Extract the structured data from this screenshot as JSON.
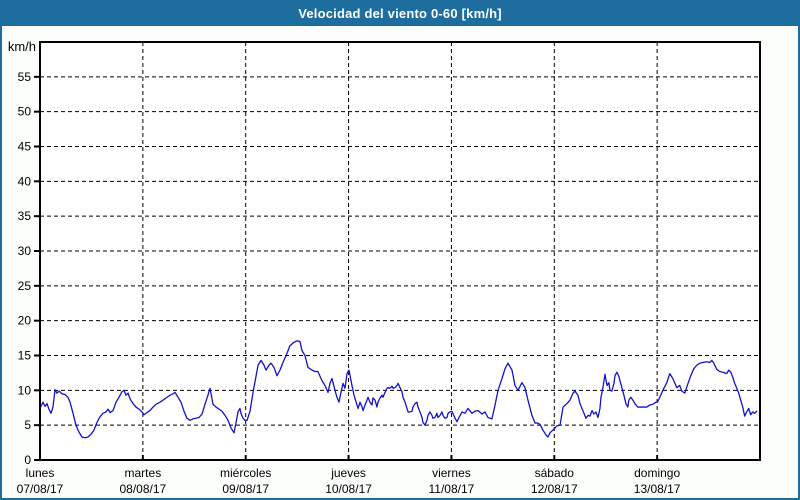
{
  "window": {
    "title": "Velocidad del viento 0-60 [km/h]"
  },
  "colors": {
    "title_bar_bg": "#1d6d9e",
    "title_text": "#ffffff",
    "frame_border": "#1d6d9e",
    "page_bg": "#fcfefc",
    "plot_bg": "#fefffe",
    "axis": "#000000",
    "grid": "#000000",
    "tick_label": "#000000",
    "line": "#1313cc"
  },
  "chart_data": {
    "type": "line",
    "title": "Velocidad del viento 0-60 [km/h]",
    "ylabel": "km/h",
    "xlabel": "",
    "ylim": [
      0,
      60
    ],
    "yticks": [
      0,
      5,
      10,
      15,
      20,
      25,
      30,
      35,
      40,
      45,
      50,
      55
    ],
    "grid": "dashed",
    "legend_position": "none",
    "x_axis": {
      "days": [
        {
          "name": "lunes",
          "date": "07/08/17"
        },
        {
          "name": "martes",
          "date": "08/08/17"
        },
        {
          "name": "miércoles",
          "date": "09/08/17"
        },
        {
          "name": "jueves",
          "date": "10/08/17"
        },
        {
          "name": "viernes",
          "date": "11/08/17"
        },
        {
          "name": "sábado",
          "date": "12/08/17"
        },
        {
          "name": "domingo",
          "date": "13/08/17"
        }
      ]
    },
    "series": [
      {
        "name": "velocidad_viento",
        "unit": "km/h",
        "color": "#1313cc",
        "points": [
          [
            0.01,
            7.7
          ],
          [
            0.029,
            8.3
          ],
          [
            0.049,
            7.7
          ],
          [
            0.068,
            8.1
          ],
          [
            0.087,
            7.3
          ],
          [
            0.107,
            6.7
          ],
          [
            0.126,
            7.6
          ],
          [
            0.146,
            10.1
          ],
          [
            0.165,
            9.6
          ],
          [
            0.185,
            9.9
          ],
          [
            0.214,
            9.5
          ],
          [
            0.243,
            9.4
          ],
          [
            0.272,
            9.0
          ],
          [
            0.292,
            8.3
          ],
          [
            0.321,
            6.7
          ],
          [
            0.35,
            5.0
          ],
          [
            0.379,
            4.0
          ],
          [
            0.408,
            3.3
          ],
          [
            0.437,
            3.2
          ],
          [
            0.467,
            3.3
          ],
          [
            0.496,
            3.7
          ],
          [
            0.525,
            4.3
          ],
          [
            0.554,
            5.4
          ],
          [
            0.583,
            6.2
          ],
          [
            0.612,
            6.7
          ],
          [
            0.642,
            6.9
          ],
          [
            0.661,
            7.3
          ],
          [
            0.681,
            6.8
          ],
          [
            0.71,
            7.1
          ],
          [
            0.739,
            8.3
          ],
          [
            0.768,
            9.0
          ],
          [
            0.797,
            9.8
          ],
          [
            0.817,
            10.0
          ],
          [
            0.836,
            9.3
          ],
          [
            0.856,
            9.6
          ],
          [
            0.875,
            8.8
          ],
          [
            0.904,
            8.1
          ],
          [
            0.933,
            7.6
          ],
          [
            0.962,
            7.3
          ],
          [
            0.992,
            6.9
          ],
          [
            1.011,
            6.5
          ],
          [
            1.04,
            6.8
          ],
          [
            1.069,
            7.1
          ],
          [
            1.099,
            7.6
          ],
          [
            1.128,
            8.0
          ],
          [
            1.167,
            8.3
          ],
          [
            1.196,
            8.6
          ],
          [
            1.225,
            8.9
          ],
          [
            1.264,
            9.3
          ],
          [
            1.293,
            9.5
          ],
          [
            1.313,
            9.7
          ],
          [
            1.342,
            9.0
          ],
          [
            1.371,
            8.3
          ],
          [
            1.4,
            7.0
          ],
          [
            1.429,
            6.0
          ],
          [
            1.458,
            5.7
          ],
          [
            1.488,
            5.9
          ],
          [
            1.517,
            6.0
          ],
          [
            1.546,
            6.1
          ],
          [
            1.575,
            6.6
          ],
          [
            1.604,
            8.0
          ],
          [
            1.633,
            9.3
          ],
          [
            1.653,
            10.3
          ],
          [
            1.682,
            8.0
          ],
          [
            1.711,
            7.6
          ],
          [
            1.74,
            7.3
          ],
          [
            1.769,
            7.0
          ],
          [
            1.799,
            6.4
          ],
          [
            1.828,
            5.7
          ],
          [
            1.857,
            4.6
          ],
          [
            1.886,
            3.9
          ],
          [
            1.905,
            5.3
          ],
          [
            1.925,
            6.9
          ],
          [
            1.944,
            7.4
          ],
          [
            1.954,
            6.7
          ],
          [
            1.974,
            6.0
          ],
          [
            1.993,
            5.7
          ],
          [
            2.013,
            5.7
          ],
          [
            2.042,
            7.0
          ],
          [
            2.071,
            9.7
          ],
          [
            2.1,
            12.0
          ],
          [
            2.12,
            13.6
          ],
          [
            2.149,
            14.3
          ],
          [
            2.178,
            13.6
          ],
          [
            2.197,
            12.9
          ],
          [
            2.226,
            13.6
          ],
          [
            2.246,
            13.9
          ],
          [
            2.275,
            13.3
          ],
          [
            2.304,
            12.1
          ],
          [
            2.333,
            12.9
          ],
          [
            2.362,
            14.0
          ],
          [
            2.401,
            15.3
          ],
          [
            2.43,
            16.4
          ],
          [
            2.469,
            16.9
          ],
          [
            2.499,
            17.1
          ],
          [
            2.528,
            17.0
          ],
          [
            2.547,
            15.7
          ],
          [
            2.576,
            15.0
          ],
          [
            2.605,
            13.3
          ],
          [
            2.644,
            12.9
          ],
          [
            2.673,
            12.7
          ],
          [
            2.702,
            12.7
          ],
          [
            2.741,
            11.4
          ],
          [
            2.771,
            10.7
          ],
          [
            2.8,
            9.7
          ],
          [
            2.819,
            11.0
          ],
          [
            2.839,
            11.7
          ],
          [
            2.868,
            10.0
          ],
          [
            2.887,
            9.0
          ],
          [
            2.907,
            8.3
          ],
          [
            2.926,
            9.7
          ],
          [
            2.946,
            11.0
          ],
          [
            2.965,
            10.3
          ],
          [
            2.985,
            12.4
          ],
          [
            3.004,
            12.9
          ],
          [
            3.033,
            10.7
          ],
          [
            3.053,
            9.3
          ],
          [
            3.082,
            7.9
          ],
          [
            3.092,
            7.4
          ],
          [
            3.111,
            8.3
          ],
          [
            3.131,
            7.6
          ],
          [
            3.141,
            7.1
          ],
          [
            3.16,
            7.9
          ],
          [
            3.179,
            8.6
          ],
          [
            3.189,
            9.0
          ],
          [
            3.208,
            8.3
          ],
          [
            3.228,
            7.9
          ],
          [
            3.237,
            8.9
          ],
          [
            3.257,
            8.6
          ],
          [
            3.276,
            7.6
          ],
          [
            3.286,
            8.3
          ],
          [
            3.306,
            8.9
          ],
          [
            3.325,
            9.3
          ],
          [
            3.335,
            9.0
          ],
          [
            3.354,
            9.7
          ],
          [
            3.374,
            10.3
          ],
          [
            3.383,
            10.4
          ],
          [
            3.403,
            10.3
          ],
          [
            3.422,
            10.6
          ],
          [
            3.432,
            10.3
          ],
          [
            3.452,
            10.4
          ],
          [
            3.471,
            10.7
          ],
          [
            3.481,
            11.0
          ],
          [
            3.5,
            10.4
          ],
          [
            3.52,
            9.8
          ],
          [
            3.529,
            9.0
          ],
          [
            3.549,
            8.3
          ],
          [
            3.568,
            7.4
          ],
          [
            3.578,
            6.9
          ],
          [
            3.597,
            6.9
          ],
          [
            3.617,
            7.0
          ],
          [
            3.626,
            7.6
          ],
          [
            3.646,
            8.1
          ],
          [
            3.665,
            8.3
          ],
          [
            3.675,
            7.6
          ],
          [
            3.694,
            6.9
          ],
          [
            3.714,
            6.1
          ],
          [
            3.723,
            5.4
          ],
          [
            3.743,
            5.0
          ],
          [
            3.762,
            5.7
          ],
          [
            3.772,
            6.4
          ],
          [
            3.791,
            6.9
          ],
          [
            3.811,
            6.4
          ],
          [
            3.82,
            6.0
          ],
          [
            3.84,
            6.1
          ],
          [
            3.859,
            6.7
          ],
          [
            3.869,
            6.1
          ],
          [
            3.889,
            6.4
          ],
          [
            3.908,
            6.9
          ],
          [
            3.918,
            6.4
          ],
          [
            3.937,
            6.0
          ],
          [
            3.957,
            6.1
          ],
          [
            3.967,
            6.7
          ],
          [
            3.986,
            6.9
          ],
          [
            4.005,
            7.0
          ],
          [
            4.035,
            6.0
          ],
          [
            4.054,
            5.5
          ],
          [
            4.074,
            6.1
          ],
          [
            4.103,
            6.9
          ],
          [
            4.132,
            6.7
          ],
          [
            4.161,
            7.4
          ],
          [
            4.2,
            6.7
          ],
          [
            4.229,
            7.0
          ],
          [
            4.258,
            7.1
          ],
          [
            4.297,
            6.6
          ],
          [
            4.326,
            6.9
          ],
          [
            4.355,
            6.1
          ],
          [
            4.394,
            5.9
          ],
          [
            4.424,
            7.9
          ],
          [
            4.453,
            10.0
          ],
          [
            4.492,
            11.7
          ],
          [
            4.521,
            13.1
          ],
          [
            4.55,
            13.9
          ],
          [
            4.589,
            12.9
          ],
          [
            4.618,
            10.7
          ],
          [
            4.647,
            10.0
          ],
          [
            4.686,
            11.1
          ],
          [
            4.715,
            10.4
          ],
          [
            4.744,
            8.6
          ],
          [
            4.783,
            6.4
          ],
          [
            4.813,
            5.3
          ],
          [
            4.842,
            5.3
          ],
          [
            4.861,
            5.1
          ],
          [
            4.89,
            4.3
          ],
          [
            4.919,
            3.6
          ],
          [
            4.939,
            3.3
          ],
          [
            4.958,
            3.9
          ],
          [
            4.987,
            4.3
          ],
          [
            5.007,
            4.6
          ],
          [
            5.026,
            4.9
          ],
          [
            5.056,
            5.0
          ],
          [
            5.085,
            7.6
          ],
          [
            5.123,
            8.1
          ],
          [
            5.153,
            8.6
          ],
          [
            5.182,
            9.6
          ],
          [
            5.201,
            9.9
          ],
          [
            5.23,
            9.3
          ],
          [
            5.25,
            8.1
          ],
          [
            5.269,
            7.4
          ],
          [
            5.289,
            6.7
          ],
          [
            5.308,
            6.0
          ],
          [
            5.328,
            6.4
          ],
          [
            5.347,
            6.3
          ],
          [
            5.367,
            7.1
          ],
          [
            5.386,
            6.6
          ],
          [
            5.405,
            6.9
          ],
          [
            5.425,
            6.1
          ],
          [
            5.444,
            7.4
          ],
          [
            5.454,
            9.0
          ],
          [
            5.473,
            10.4
          ],
          [
            5.493,
            12.3
          ],
          [
            5.512,
            10.7
          ],
          [
            5.531,
            11.1
          ],
          [
            5.541,
            10.0
          ],
          [
            5.56,
            9.9
          ],
          [
            5.58,
            11.0
          ],
          [
            5.59,
            12.1
          ],
          [
            5.609,
            12.6
          ],
          [
            5.628,
            12.0
          ],
          [
            5.638,
            11.4
          ],
          [
            5.657,
            10.4
          ],
          [
            5.677,
            9.3
          ],
          [
            5.696,
            8.1
          ],
          [
            5.715,
            7.6
          ],
          [
            5.725,
            8.6
          ],
          [
            5.744,
            9.0
          ],
          [
            5.764,
            8.6
          ],
          [
            5.783,
            8.1
          ],
          [
            5.812,
            7.6
          ],
          [
            5.841,
            7.6
          ],
          [
            5.87,
            7.6
          ],
          [
            5.899,
            7.6
          ],
          [
            5.929,
            7.9
          ],
          [
            5.958,
            8.0
          ],
          [
            5.987,
            8.3
          ],
          [
            6.006,
            8.4
          ],
          [
            6.026,
            9.0
          ],
          [
            6.055,
            10.0
          ],
          [
            6.094,
            11.1
          ],
          [
            6.123,
            12.4
          ],
          [
            6.152,
            11.7
          ],
          [
            6.191,
            10.4
          ],
          [
            6.22,
            10.7
          ],
          [
            6.239,
            9.9
          ],
          [
            6.269,
            9.6
          ],
          [
            6.298,
            10.9
          ],
          [
            6.327,
            12.1
          ],
          [
            6.356,
            13.1
          ],
          [
            6.385,
            13.6
          ],
          [
            6.415,
            13.9
          ],
          [
            6.444,
            14.0
          ],
          [
            6.483,
            14.1
          ],
          [
            6.512,
            14.0
          ],
          [
            6.531,
            14.3
          ],
          [
            6.551,
            13.9
          ],
          [
            6.58,
            13.0
          ],
          [
            6.609,
            12.7
          ],
          [
            6.638,
            12.6
          ],
          [
            6.677,
            12.4
          ],
          [
            6.696,
            12.9
          ],
          [
            6.716,
            12.6
          ],
          [
            6.735,
            11.9
          ],
          [
            6.754,
            11.0
          ],
          [
            6.774,
            10.3
          ],
          [
            6.793,
            9.6
          ],
          [
            6.812,
            8.6
          ],
          [
            6.832,
            7.6
          ],
          [
            6.851,
            6.3
          ],
          [
            6.87,
            6.9
          ],
          [
            6.89,
            7.4
          ],
          [
            6.909,
            6.5
          ],
          [
            6.929,
            6.9
          ],
          [
            6.948,
            6.7
          ],
          [
            6.968,
            7.0
          ]
        ]
      }
    ]
  }
}
